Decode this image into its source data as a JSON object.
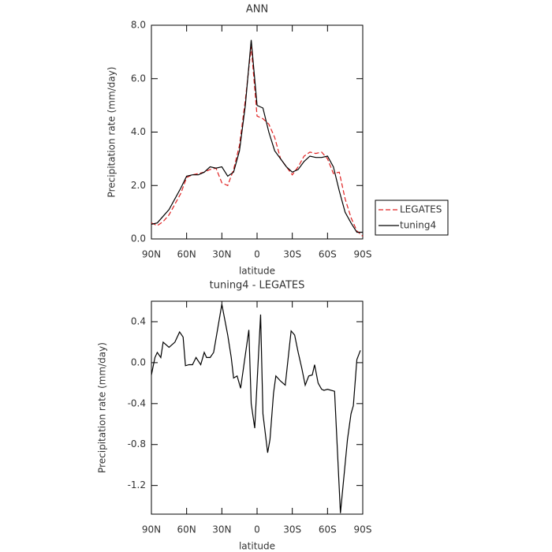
{
  "chart_data": [
    {
      "type": "line",
      "title": "ANN",
      "x_label": "latitude",
      "y_label": "Precipitation rate (mm/day)",
      "x": [
        90,
        85,
        80,
        75,
        70,
        65,
        60,
        55,
        50,
        45,
        40,
        35,
        30,
        25,
        20,
        15,
        10,
        5,
        0,
        -5,
        -10,
        -15,
        -20,
        -25,
        -30,
        -35,
        -40,
        -45,
        -50,
        -55,
        -60,
        -65,
        -70,
        -75,
        -80,
        -85,
        -90
      ],
      "series": [
        {
          "name": "LEGATES",
          "color": "#e02020",
          "dash": true,
          "values": [
            0.6,
            0.5,
            0.65,
            0.9,
            1.3,
            1.7,
            2.3,
            2.4,
            2.45,
            2.5,
            2.6,
            2.65,
            2.1,
            2.0,
            2.6,
            3.5,
            5.2,
            7.2,
            4.6,
            4.5,
            4.3,
            3.8,
            3.0,
            2.7,
            2.4,
            2.7,
            3.1,
            3.25,
            3.2,
            3.25,
            3.0,
            2.45,
            2.5,
            1.5,
            0.8,
            0.3,
            0.1
          ]
        },
        {
          "name": "tuning4",
          "color": "#000000",
          "dash": false,
          "values": [
            0.55,
            0.6,
            0.85,
            1.1,
            1.5,
            1.9,
            2.35,
            2.4,
            2.4,
            2.5,
            2.7,
            2.65,
            2.7,
            2.35,
            2.5,
            3.3,
            5.0,
            7.45,
            5.0,
            4.9,
            4.0,
            3.3,
            3.0,
            2.7,
            2.5,
            2.6,
            2.9,
            3.1,
            3.05,
            3.05,
            3.1,
            2.7,
            1.8,
            1.0,
            0.6,
            0.25,
            0.25
          ]
        }
      ],
      "xlim": [
        90,
        -90
      ],
      "xticks": [
        {
          "value": 90,
          "label": "90N"
        },
        {
          "value": 60,
          "label": "60N"
        },
        {
          "value": 30,
          "label": "30N"
        },
        0,
        {
          "value": -30,
          "label": "30S"
        },
        {
          "value": -60,
          "label": "60S"
        },
        {
          "value": -90,
          "label": "90S"
        }
      ],
      "ylim": [
        0,
        8
      ],
      "yticks": [
        {
          "value": 0,
          "label": "0.0"
        },
        {
          "value": 2,
          "label": "2.0"
        },
        {
          "value": 4,
          "label": "4.0"
        },
        {
          "value": 6,
          "label": "6.0"
        },
        {
          "value": 8,
          "label": "8.0"
        }
      ],
      "legend": "right"
    },
    {
      "type": "line",
      "title": "tuning4 - LEGATES",
      "x_label": "latitude",
      "y_label": "Precipitation rate (mm/day)",
      "x": [
        90,
        87,
        85,
        82,
        80,
        75,
        70,
        66,
        63,
        61,
        58,
        55,
        52,
        48,
        45,
        43,
        40,
        37,
        30,
        25,
        22,
        20,
        17,
        14,
        7,
        5,
        2,
        -3,
        -5,
        -9,
        -11,
        -14,
        -16,
        -20,
        -24,
        -27,
        -29,
        -32,
        -35,
        -38,
        -41,
        -44,
        -47,
        -49,
        -52,
        -55,
        -57,
        -60,
        -66,
        -71,
        -77,
        -80,
        -82,
        -85,
        -88
      ],
      "series": [
        {
          "color": "#000000",
          "dash": false,
          "values": [
            -0.12,
            0.05,
            0.1,
            0.05,
            0.2,
            0.15,
            0.2,
            0.3,
            0.25,
            -0.03,
            -0.02,
            -0.02,
            0.05,
            -0.02,
            0.1,
            0.05,
            0.05,
            0.1,
            0.57,
            0.27,
            0.05,
            -0.15,
            -0.13,
            -0.25,
            0.32,
            -0.4,
            -0.64,
            0.47,
            -0.5,
            -0.88,
            -0.75,
            -0.3,
            -0.13,
            -0.18,
            -0.22,
            0.1,
            0.31,
            0.27,
            0.1,
            -0.05,
            -0.22,
            -0.13,
            -0.12,
            -0.02,
            -0.2,
            -0.26,
            -0.27,
            -0.26,
            -0.28,
            -1.47,
            -0.75,
            -0.5,
            -0.42,
            0.03,
            0.12
          ]
        }
      ],
      "xlim": [
        90,
        -90
      ],
      "xticks": [
        {
          "value": 90,
          "label": "90N"
        },
        {
          "value": 60,
          "label": "60N"
        },
        {
          "value": 30,
          "label": "30N"
        },
        0,
        {
          "value": -30,
          "label": "30S"
        },
        {
          "value": -60,
          "label": "60S"
        },
        {
          "value": -90,
          "label": "90S"
        }
      ],
      "ylim": [
        -1.48,
        0.6
      ],
      "yticks": [
        {
          "value": 0.4,
          "label": "0.4"
        },
        {
          "value": 0,
          "label": "0.0"
        },
        {
          "value": -0.4,
          "label": "-0.4"
        },
        {
          "value": -0.8,
          "label": "-0.8"
        },
        {
          "value": -1.2,
          "label": "-1.2"
        }
      ]
    }
  ]
}
